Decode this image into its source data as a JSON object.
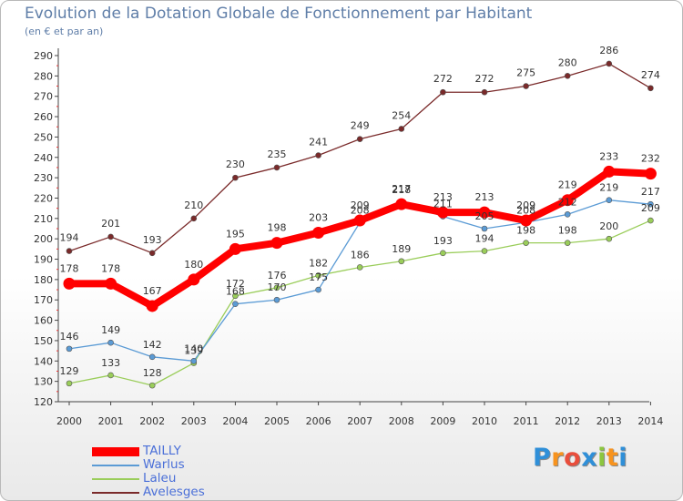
{
  "chart_data": {
    "type": "line",
    "title": "Evolution de la Dotation Globale de Fonctionnement par Habitant",
    "subtitle": "(en € et par an)",
    "xlabel": "",
    "ylabel": "",
    "categories": [
      "2000",
      "2001",
      "2002",
      "2003",
      "2004",
      "2005",
      "2006",
      "2007",
      "2008",
      "2009",
      "2010",
      "2011",
      "2012",
      "2013",
      "2014"
    ],
    "ylim": [
      120,
      290
    ],
    "yticks": [
      120,
      130,
      140,
      150,
      160,
      170,
      180,
      190,
      200,
      210,
      220,
      230,
      240,
      250,
      260,
      270,
      280,
      290
    ],
    "grid": false,
    "legend_position": "bottom-left",
    "series": [
      {
        "name": "TAILLY",
        "color": "#ff0000",
        "values": [
          178,
          178,
          167,
          180,
          195,
          198,
          203,
          209,
          217,
          213,
          213,
          209,
          219,
          233,
          232
        ]
      },
      {
        "name": "Warlus",
        "color": "#5b9bd5",
        "values": [
          146,
          149,
          142,
          140,
          168,
          170,
          175,
          208,
          218,
          211,
          205,
          208,
          212,
          219,
          217
        ]
      },
      {
        "name": "Laleu",
        "color": "#9acd5a",
        "values": [
          129,
          133,
          128,
          139,
          172,
          176,
          182,
          186,
          189,
          193,
          194,
          198,
          198,
          200,
          209
        ]
      },
      {
        "name": "Avelesges",
        "color": "#7a2a2a",
        "values": [
          194,
          201,
          193,
          210,
          230,
          235,
          241,
          249,
          254,
          272,
          272,
          275,
          280,
          286,
          274
        ]
      }
    ]
  },
  "logo": {
    "text": "Proxiti",
    "letters": [
      "P",
      "r",
      "o",
      "x",
      "i",
      "t",
      "i"
    ],
    "colors": [
      "#2f8fd8",
      "#f7931e",
      "#e94e3c",
      "#2f8fd8",
      "#8cc63f",
      "#f7931e",
      "#2f8fd8"
    ]
  }
}
